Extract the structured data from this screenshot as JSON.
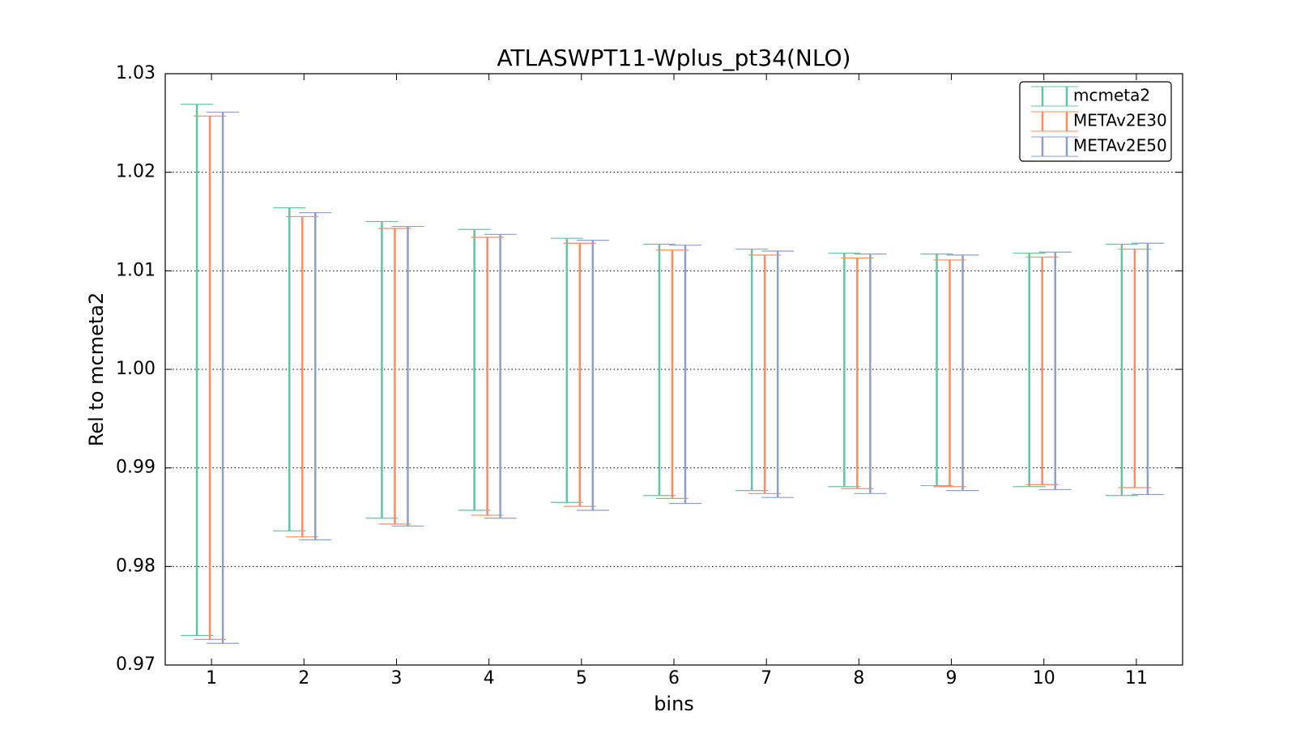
{
  "chart_data": {
    "type": "errorbar",
    "title": "ATLASWPT11-Wplus_pt34(NLO)",
    "x_label": "bins",
    "y_label": "Rel to mcmeta2",
    "categories": [
      1,
      2,
      3,
      4,
      5,
      6,
      7,
      8,
      9,
      10,
      11
    ],
    "xlim": [
      0.5,
      11.5
    ],
    "xticks": [
      1,
      2,
      3,
      4,
      5,
      6,
      7,
      8,
      9,
      10,
      11
    ],
    "ylim": [
      0.97,
      1.03
    ],
    "yticks": [
      0.97,
      0.98,
      0.99,
      {
        "value": 1,
        "label": "1.00"
      },
      1.01,
      1.02,
      1.03
    ],
    "grid": true,
    "legend": "upper right",
    "series": [
      {
        "name": "mcmeta2",
        "color": "#66c2a5",
        "high": [
          1.0269,
          1.0164,
          1.015,
          1.0142,
          1.0133,
          1.0127,
          1.0122,
          1.0118,
          1.0117,
          1.0118,
          1.0127
        ],
        "low": [
          0.973,
          0.9836,
          0.9849,
          0.9857,
          0.9865,
          0.9872,
          0.9877,
          0.9881,
          0.9882,
          0.9881,
          0.9872
        ]
      },
      {
        "name": "METAv2E30",
        "color": "#fc8d62",
        "high": [
          1.0257,
          1.0155,
          1.0143,
          1.0134,
          1.0128,
          1.0121,
          1.0116,
          1.0113,
          1.0111,
          1.0114,
          1.0122
        ],
        "low": [
          0.9726,
          0.983,
          0.9843,
          0.9852,
          0.9861,
          0.9869,
          0.9874,
          0.9879,
          0.9881,
          0.9883,
          0.988
        ]
      },
      {
        "name": "METAv2E50",
        "color": "#8da0cb",
        "high": [
          1.0261,
          1.0159,
          1.0145,
          1.0137,
          1.0131,
          1.0126,
          1.012,
          1.0117,
          1.0116,
          1.0119,
          1.0128
        ],
        "low": [
          0.9722,
          0.9827,
          0.9841,
          0.9849,
          0.9857,
          0.9864,
          0.987,
          0.9874,
          0.9877,
          0.9878,
          0.9873
        ]
      }
    ]
  }
}
